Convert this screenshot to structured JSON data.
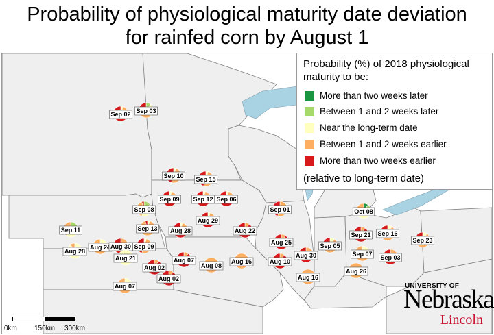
{
  "title_line1": "Probability of physiological maturity date deviation",
  "title_line2": "for rainfed corn by August 1",
  "legend": {
    "title": "Probability (%) of 2018 physiological maturity to be:",
    "items": [
      {
        "label": "More than two weeks later",
        "color": "#1a9641"
      },
      {
        "label": "Between 1 and 2 weeks later",
        "color": "#a6d96a"
      },
      {
        "label": "Near the long-term date",
        "color": "#ffffbf"
      },
      {
        "label": "Between 1 and 2 weeks earlier",
        "color": "#fdae61"
      },
      {
        "label": "More than two weeks earlier",
        "color": "#d7191c"
      }
    ],
    "note": "(relative to long-term date)"
  },
  "sites": [
    {
      "label": "Sep 02",
      "probs": [
        0,
        0,
        5,
        25,
        70
      ]
    },
    {
      "label": "Sep 03",
      "probs": [
        0,
        10,
        30,
        40,
        20
      ]
    },
    {
      "label": "Sep 10",
      "probs": [
        0,
        0,
        5,
        50,
        45
      ]
    },
    {
      "label": "Sep 15",
      "probs": [
        0,
        0,
        5,
        50,
        45
      ]
    },
    {
      "label": "Sep 09",
      "probs": [
        0,
        0,
        5,
        30,
        65
      ]
    },
    {
      "label": "Sep 12",
      "probs": [
        0,
        0,
        5,
        30,
        65
      ]
    },
    {
      "label": "Sep 06",
      "probs": [
        0,
        0,
        5,
        30,
        65
      ]
    },
    {
      "label": "Sep 08",
      "probs": [
        0,
        15,
        40,
        40,
        5
      ]
    },
    {
      "label": "Sep 01",
      "probs": [
        0,
        0,
        0,
        55,
        45
      ]
    },
    {
      "label": "Oct 08",
      "probs": [
        10,
        20,
        50,
        20,
        0
      ]
    },
    {
      "label": "Aug 29",
      "probs": [
        0,
        0,
        5,
        30,
        65
      ]
    },
    {
      "label": "Aug 28",
      "probs": [
        0,
        0,
        5,
        30,
        65
      ]
    },
    {
      "label": "Sep 13",
      "probs": [
        0,
        0,
        5,
        90,
        5
      ]
    },
    {
      "label": "Aug 22",
      "probs": [
        0,
        0,
        0,
        10,
        90
      ]
    },
    {
      "label": "Sep 21",
      "probs": [
        0,
        0,
        0,
        10,
        90
      ]
    },
    {
      "label": "Sep 16",
      "probs": [
        0,
        0,
        10,
        50,
        40
      ]
    },
    {
      "label": "Sep 11",
      "probs": [
        0,
        20,
        40,
        40,
        0
      ]
    },
    {
      "label": "Aug 28",
      "probs": [
        0,
        0,
        90,
        10,
        0
      ]
    },
    {
      "label": "Aug 24",
      "probs": [
        0,
        0,
        20,
        80,
        0
      ]
    },
    {
      "label": "Aug 30",
      "probs": [
        0,
        0,
        0,
        50,
        50
      ]
    },
    {
      "label": "Sep 09",
      "probs": [
        0,
        0,
        5,
        50,
        45
      ]
    },
    {
      "label": "Aug 25",
      "probs": [
        0,
        0,
        0,
        10,
        90
      ]
    },
    {
      "label": "Sep 05",
      "probs": [
        0,
        0,
        10,
        70,
        20
      ]
    },
    {
      "label": "Sep 23",
      "probs": [
        0,
        0,
        10,
        50,
        40
      ]
    },
    {
      "label": "Sep 07",
      "probs": [
        0,
        0,
        20,
        80,
        0
      ]
    },
    {
      "label": "Aug 21",
      "probs": [
        0,
        0,
        100,
        0,
        0
      ]
    },
    {
      "label": "Aug 07",
      "probs": [
        0,
        0,
        0,
        10,
        90
      ]
    },
    {
      "label": "Aug 08",
      "probs": [
        0,
        0,
        0,
        100,
        0
      ]
    },
    {
      "label": "Aug 16",
      "probs": [
        0,
        0,
        0,
        100,
        0
      ]
    },
    {
      "label": "Aug 10",
      "probs": [
        0,
        0,
        0,
        10,
        90
      ]
    },
    {
      "label": "Aug 30",
      "probs": [
        0,
        0,
        0,
        20,
        80
      ]
    },
    {
      "label": "Sep 03",
      "probs": [
        0,
        0,
        0,
        20,
        80
      ]
    },
    {
      "label": "Aug 02",
      "probs": [
        0,
        0,
        0,
        10,
        90
      ]
    },
    {
      "label": "Aug 02",
      "probs": [
        0,
        0,
        0,
        10,
        90
      ]
    },
    {
      "label": "Aug 16",
      "probs": [
        0,
        0,
        0,
        100,
        0
      ]
    },
    {
      "label": "Aug 26",
      "probs": [
        0,
        0,
        0,
        100,
        0
      ]
    },
    {
      "label": "Aug 07",
      "probs": [
        0,
        0,
        20,
        80,
        0
      ]
    }
  ],
  "scale": {
    "labels": [
      "0km",
      "150km",
      "300km"
    ]
  },
  "logo": {
    "university": "UNIVERSITY OF",
    "name": "Nebraska",
    "city": "Lincoln"
  }
}
